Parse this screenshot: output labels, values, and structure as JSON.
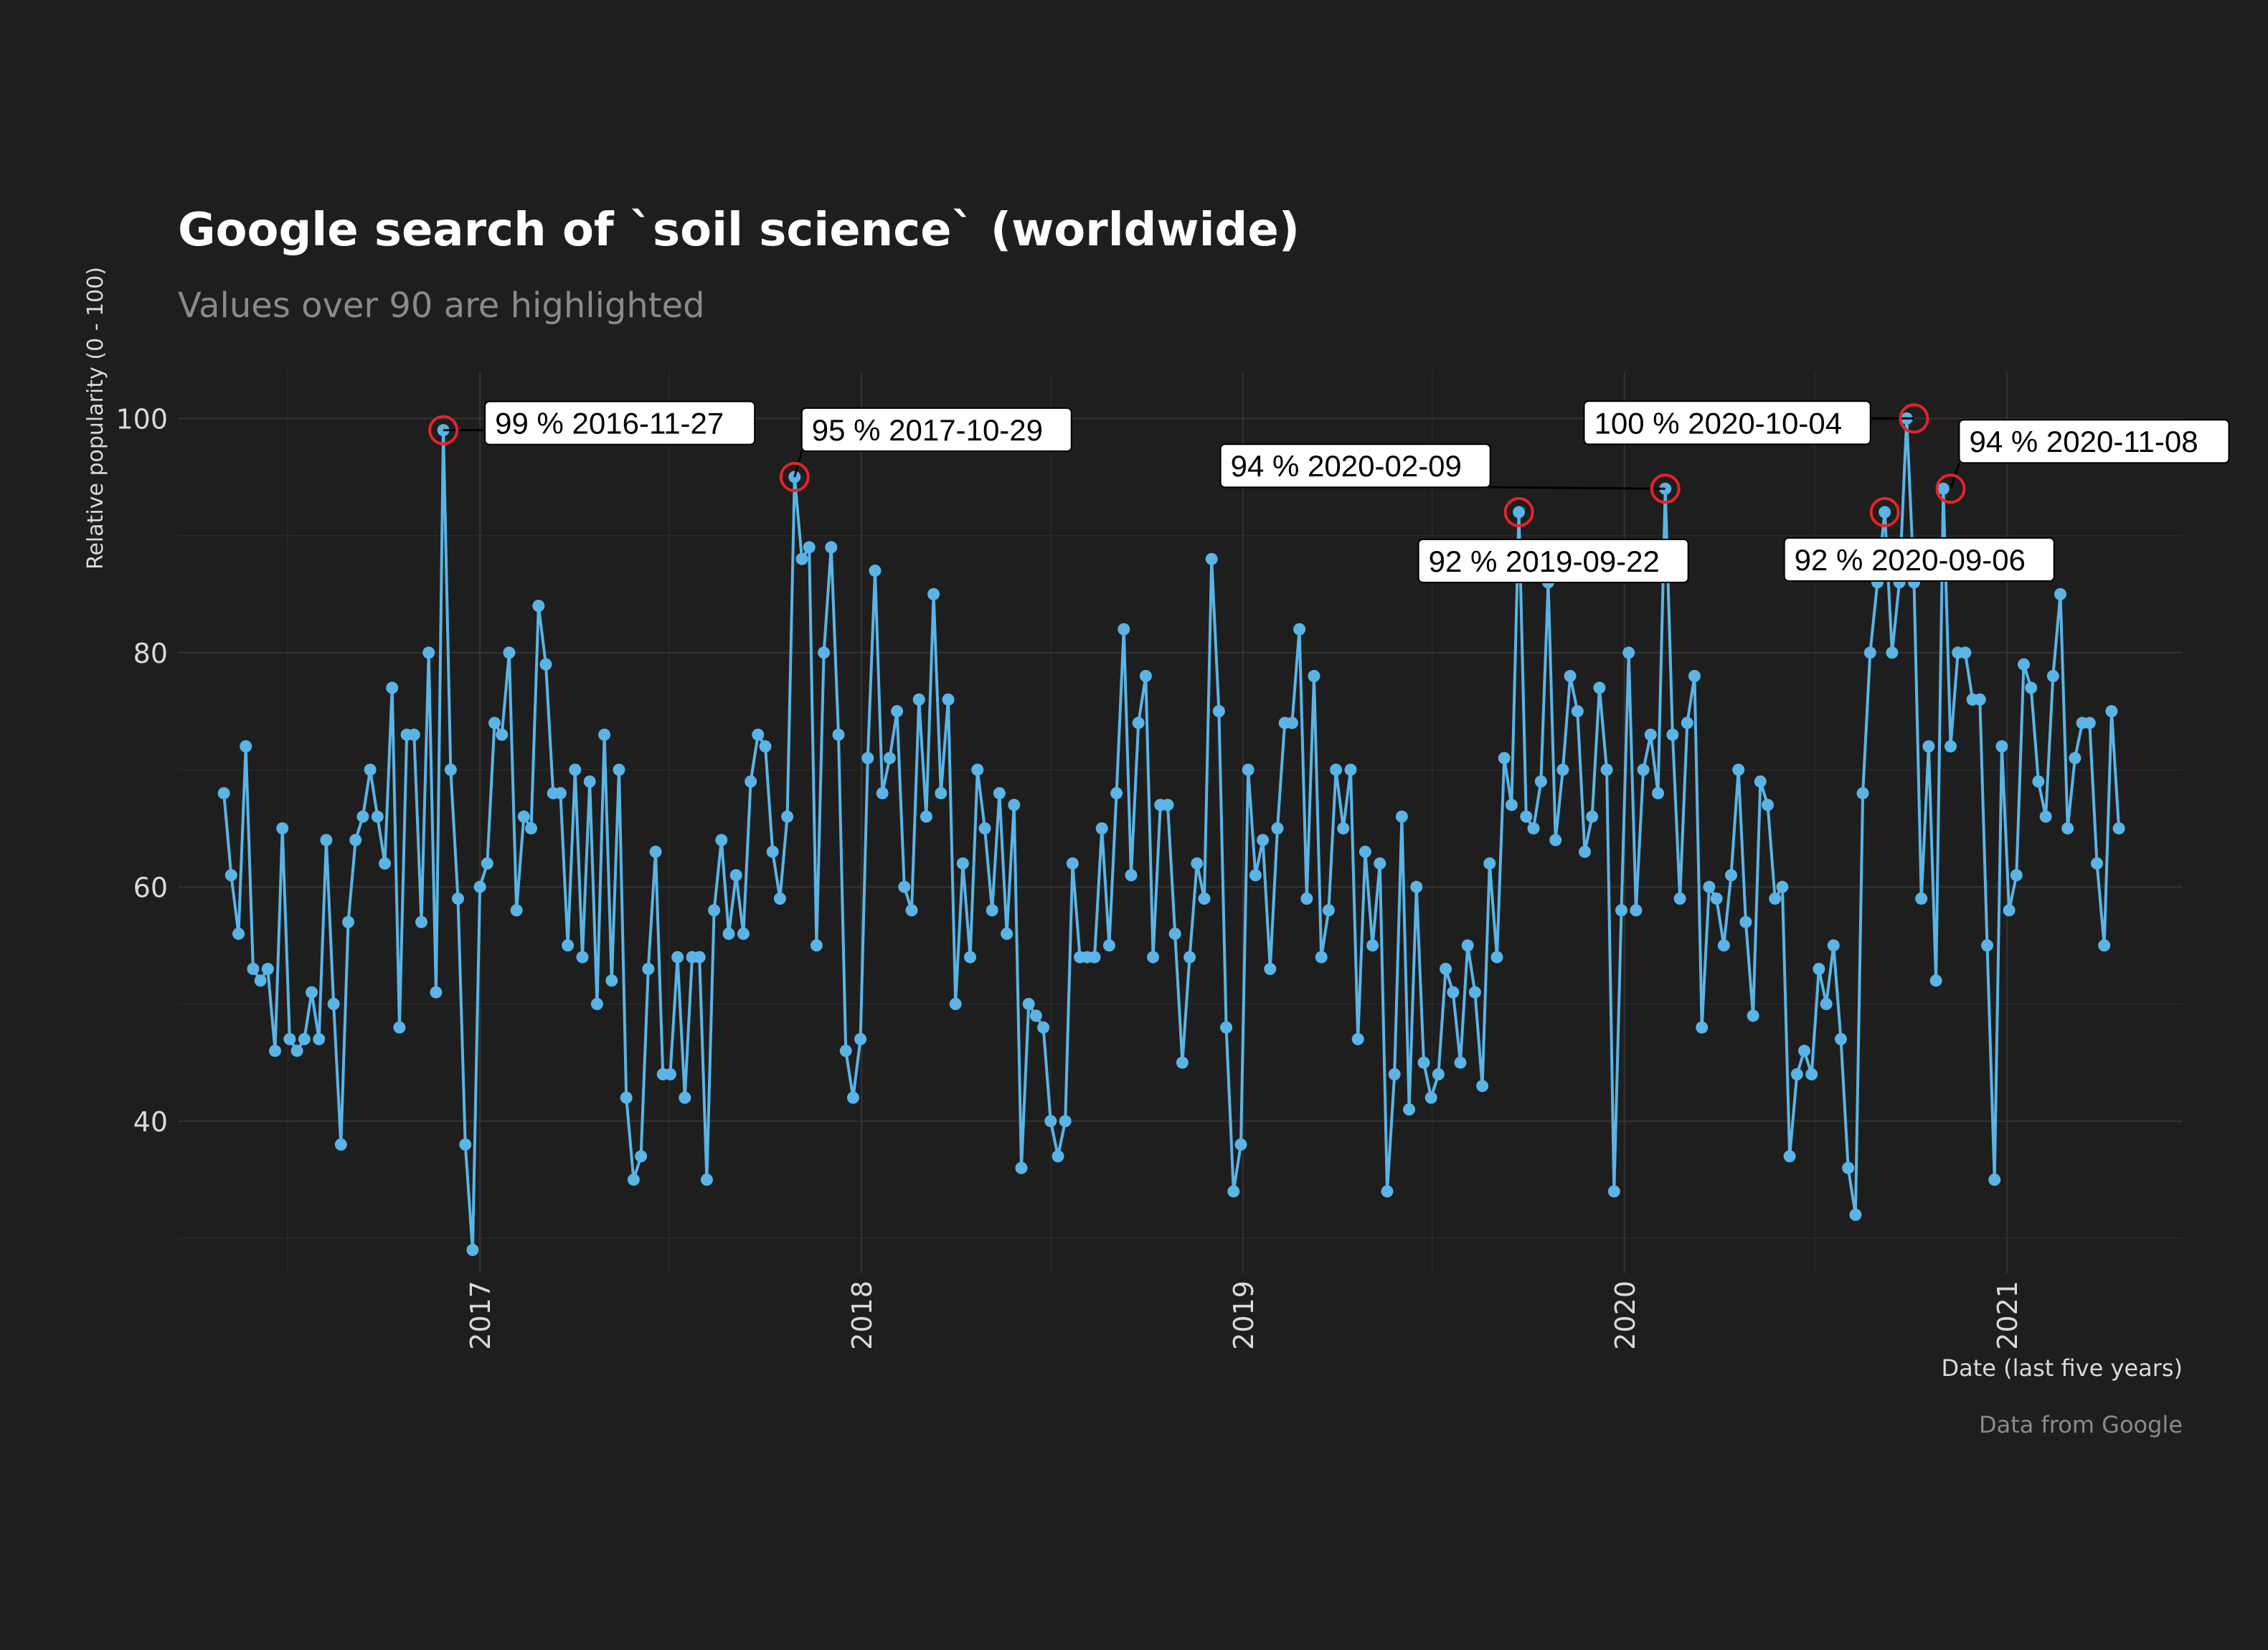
{
  "chart_data": {
    "type": "line",
    "title": "Google search of `soil science` (worldwide)",
    "subtitle": "Values over 90 are highlighted",
    "xlabel": "Date (last five years)",
    "ylabel": "Relative popularity (0 - 100)",
    "caption": "Data from Google",
    "ylim": [
      27,
      104
    ],
    "xlim": [
      "2016-03-18",
      "2021-06-18"
    ],
    "x_ticks": [
      "2017",
      "2018",
      "2019",
      "2020",
      "2021"
    ],
    "y_ticks": [
      40,
      60,
      80,
      100
    ],
    "grid": true,
    "colors": {
      "background": "#1e1e1e",
      "line": "#5ab4e5",
      "point": "#5ab4e5",
      "highlight": "#e3242b",
      "grid": "#333333",
      "title": "#ffffff",
      "subtitle": "#8a8a8a",
      "axis_text": "#d9d9d9",
      "label_bg": "#ffffff"
    },
    "series": [
      {
        "start_date": "2016-05-01",
        "interval_days": 7,
        "values": [
          68,
          61,
          56,
          72,
          53,
          52,
          53,
          46,
          65,
          47,
          46,
          47,
          51,
          47,
          64,
          50,
          38,
          57,
          64,
          66,
          70,
          66,
          62,
          77,
          48,
          73,
          73,
          57,
          80,
          51,
          99,
          70,
          59,
          38,
          29,
          60,
          62,
          74,
          73,
          80,
          58,
          66,
          65,
          84,
          79,
          68,
          68,
          55,
          70,
          54,
          69,
          50,
          73,
          52,
          70,
          42,
          35,
          37,
          53,
          63,
          44,
          44,
          54,
          42,
          54,
          54,
          35,
          58,
          64,
          56,
          61,
          56,
          69,
          73,
          72,
          63,
          59,
          66,
          95,
          88,
          89,
          55,
          80,
          89,
          73,
          46,
          42,
          47,
          71,
          87,
          68,
          71,
          75,
          60,
          58,
          76,
          66,
          85,
          68,
          76,
          50,
          62,
          54,
          70,
          65,
          58,
          68,
          56,
          67,
          36,
          50,
          49,
          48,
          40,
          37,
          40,
          62,
          54,
          54,
          54,
          65,
          55,
          68,
          82,
          61,
          74,
          78,
          54,
          67,
          67,
          56,
          45,
          54,
          62,
          59,
          88,
          75,
          48,
          34,
          38,
          70,
          61,
          64,
          53,
          65,
          74,
          74,
          82,
          59,
          78,
          54,
          58,
          70,
          65,
          70,
          47,
          63,
          55,
          62,
          34,
          44,
          66,
          41,
          60,
          45,
          42,
          44,
          53,
          51,
          45,
          55,
          51,
          43,
          62,
          54,
          71,
          67,
          92,
          66,
          65,
          69,
          86,
          64,
          70,
          78,
          75,
          63,
          66,
          77,
          70,
          34,
          58,
          80,
          58,
          70,
          73,
          68,
          94,
          73,
          59,
          74,
          78,
          48,
          60,
          59,
          55,
          61,
          70,
          57,
          49,
          69,
          67,
          59,
          60,
          37,
          44,
          46,
          44,
          53,
          50,
          55,
          47,
          36,
          32,
          68,
          80,
          86,
          92,
          80,
          86,
          100,
          86,
          59,
          72,
          52,
          94,
          72,
          80,
          80,
          76,
          76,
          55,
          35,
          72,
          58,
          61,
          79,
          77,
          69,
          66,
          78,
          85,
          65,
          71,
          74,
          74,
          62,
          55,
          75,
          65
        ]
      }
    ],
    "highlights": [
      {
        "label": "99 % 2016-11-27",
        "value": 99,
        "date": "2016-11-27"
      },
      {
        "label": "95 % 2017-10-29",
        "value": 95,
        "date": "2017-10-29"
      },
      {
        "label": "92 % 2019-09-22",
        "value": 92,
        "date": "2019-09-22"
      },
      {
        "label": "94 % 2020-02-09",
        "value": 94,
        "date": "2020-02-09"
      },
      {
        "label": "92 % 2020-09-06",
        "value": 92,
        "date": "2020-09-06"
      },
      {
        "label": "100 % 2020-10-04",
        "value": 100,
        "date": "2020-10-04"
      },
      {
        "label": "94 % 2020-11-08",
        "value": 94,
        "date": "2020-11-08"
      }
    ]
  }
}
